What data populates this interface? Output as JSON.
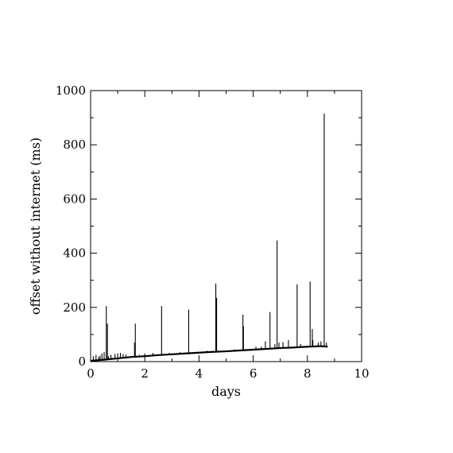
{
  "chart_data": {
    "type": "line",
    "title": "",
    "xlabel": "days",
    "ylabel": "offset without internet (ms)",
    "xlim": [
      0,
      10
    ],
    "ylim": [
      0,
      1000
    ],
    "x_ticks": [
      0,
      2,
      4,
      6,
      8,
      10
    ],
    "y_ticks": [
      0,
      200,
      400,
      600,
      800,
      1000
    ],
    "x_tick_labels": [
      "0",
      "2",
      "4",
      "6",
      "8",
      "10"
    ],
    "y_tick_labels": [
      "0",
      "200",
      "400",
      "600",
      "800",
      "1000"
    ],
    "grid": false,
    "line_color": "#000000",
    "series": [
      {
        "baseline": {
          "x": [
            0,
            0.5,
            1,
            1.5,
            2,
            2.5,
            3,
            3.5,
            4,
            4.5,
            5,
            5.5,
            6,
            6.5,
            7,
            7.5,
            8,
            8.5,
            8.75
          ],
          "y": [
            3,
            7,
            12,
            17,
            20,
            24,
            27,
            30,
            33,
            36,
            38,
            41,
            44,
            47,
            50,
            52,
            55,
            57,
            55
          ]
        },
        "spikes": {
          "x": [
            0.1,
            0.2,
            0.3,
            0.35,
            0.42,
            0.5,
            0.58,
            0.62,
            0.66,
            0.75,
            0.9,
            1.0,
            1.1,
            1.2,
            1.3,
            1.65,
            1.62,
            1.8,
            2.0,
            2.3,
            2.62,
            2.9,
            3.3,
            3.62,
            4.3,
            4.62,
            4.65,
            5.3,
            5.62,
            5.64,
            6.1,
            6.3,
            6.45,
            6.62,
            6.8,
            6.88,
            6.95,
            7.1,
            7.3,
            7.62,
            7.75,
            8.1,
            8.18,
            8.2,
            8.4,
            8.5,
            8.62,
            8.7
          ],
          "y": [
            20,
            25,
            18,
            22,
            30,
            35,
            205,
            140,
            20,
            25,
            28,
            30,
            32,
            28,
            26,
            140,
            70,
            25,
            30,
            32,
            205,
            32,
            35,
            192,
            40,
            288,
            235,
            45,
            173,
            130,
            55,
            55,
            75,
            183,
            65,
            447,
            70,
            72,
            80,
            285,
            65,
            295,
            120,
            80,
            70,
            75,
            915,
            70
          ]
        }
      }
    ]
  }
}
